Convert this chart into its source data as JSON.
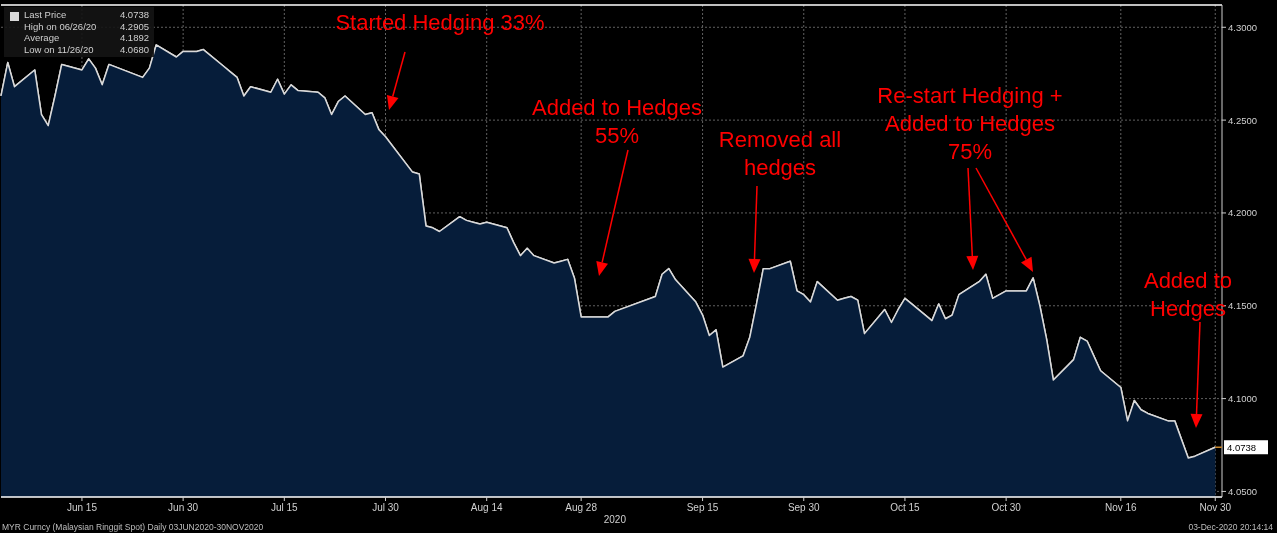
{
  "chart_data": {
    "type": "area",
    "xlabel": "2020",
    "x": [
      "2020-06-03",
      "2020-06-04",
      "2020-06-05",
      "2020-06-08",
      "2020-06-09",
      "2020-06-10",
      "2020-06-11",
      "2020-06-12",
      "2020-06-15",
      "2020-06-16",
      "2020-06-17",
      "2020-06-18",
      "2020-06-19",
      "2020-06-24",
      "2020-06-25",
      "2020-06-26",
      "2020-06-29",
      "2020-06-30",
      "2020-07-02",
      "2020-07-03",
      "2020-07-06",
      "2020-07-07",
      "2020-07-08",
      "2020-07-09",
      "2020-07-10",
      "2020-07-13",
      "2020-07-14",
      "2020-07-15",
      "2020-07-16",
      "2020-07-17",
      "2020-07-20",
      "2020-07-21",
      "2020-07-22",
      "2020-07-23",
      "2020-07-24",
      "2020-07-27",
      "2020-07-28",
      "2020-07-29",
      "2020-07-30",
      "2020-08-03",
      "2020-08-04",
      "2020-08-05",
      "2020-08-06",
      "2020-08-07",
      "2020-08-10",
      "2020-08-11",
      "2020-08-12",
      "2020-08-13",
      "2020-08-14",
      "2020-08-17",
      "2020-08-18",
      "2020-08-19",
      "2020-08-20",
      "2020-08-21",
      "2020-08-24",
      "2020-08-25",
      "2020-08-26",
      "2020-08-27",
      "2020-08-28",
      "2020-08-31",
      "2020-09-01",
      "2020-09-02",
      "2020-09-08",
      "2020-09-09",
      "2020-09-10",
      "2020-09-11",
      "2020-09-14",
      "2020-09-15",
      "2020-09-16",
      "2020-09-17",
      "2020-09-18",
      "2020-09-21",
      "2020-09-22",
      "2020-09-23",
      "2020-09-24",
      "2020-09-25",
      "2020-09-28",
      "2020-09-29",
      "2020-09-30",
      "2020-10-01",
      "2020-10-02",
      "2020-10-05",
      "2020-10-06",
      "2020-10-07",
      "2020-10-08",
      "2020-10-09",
      "2020-10-12",
      "2020-10-13",
      "2020-10-14",
      "2020-10-15",
      "2020-10-16",
      "2020-10-19",
      "2020-10-20",
      "2020-10-21",
      "2020-10-22",
      "2020-10-23",
      "2020-10-26",
      "2020-10-27",
      "2020-10-28",
      "2020-10-29",
      "2020-10-30",
      "2020-11-02",
      "2020-11-03",
      "2020-11-04",
      "2020-11-05",
      "2020-11-06",
      "2020-11-09",
      "2020-11-10",
      "2020-11-11",
      "2020-11-12",
      "2020-11-13",
      "2020-11-16",
      "2020-11-17",
      "2020-11-18",
      "2020-11-19",
      "2020-11-20",
      "2020-11-23",
      "2020-11-24",
      "2020-11-26",
      "2020-11-27",
      "2020-11-30"
    ],
    "series": [
      {
        "name": "Last Price",
        "color": "#d9d9d9",
        "values": [
          4.263,
          4.281,
          4.268,
          4.277,
          4.253,
          4.247,
          4.263,
          4.28,
          4.277,
          4.283,
          4.278,
          4.269,
          4.28,
          4.273,
          4.278,
          4.2905,
          4.284,
          4.287,
          4.287,
          4.288,
          4.279,
          4.276,
          4.273,
          4.263,
          4.268,
          4.265,
          4.272,
          4.264,
          4.269,
          4.266,
          4.265,
          4.262,
          4.253,
          4.26,
          4.263,
          4.253,
          4.254,
          4.245,
          4.241,
          4.222,
          4.221,
          4.193,
          4.192,
          4.19,
          4.198,
          4.196,
          4.195,
          4.194,
          4.195,
          4.192,
          4.184,
          4.177,
          4.181,
          4.177,
          4.173,
          4.174,
          4.175,
          4.165,
          4.144,
          4.144,
          4.144,
          4.147,
          4.155,
          4.167,
          4.17,
          4.164,
          4.152,
          4.145,
          4.134,
          4.137,
          4.117,
          4.123,
          4.133,
          4.151,
          4.17,
          4.17,
          4.174,
          4.158,
          4.156,
          4.152,
          4.163,
          4.153,
          4.154,
          4.155,
          4.153,
          4.135,
          4.148,
          4.141,
          4.148,
          4.154,
          4.151,
          4.142,
          4.151,
          4.143,
          4.145,
          4.156,
          4.163,
          4.167,
          4.154,
          4.156,
          4.158,
          4.158,
          4.165,
          4.15,
          4.132,
          4.11,
          4.121,
          4.133,
          4.131,
          4.123,
          4.115,
          4.106,
          4.088,
          4.099,
          4.094,
          4.092,
          4.088,
          4.088,
          4.068,
          4.069,
          4.0738
        ]
      }
    ],
    "xlim": [
      "2020-06-03",
      "2020-12-01"
    ],
    "xticks": [
      {
        "value": "2020-06-15",
        "label": "Jun 15"
      },
      {
        "value": "2020-06-30",
        "label": "Jun 30"
      },
      {
        "value": "2020-07-15",
        "label": "Jul 15"
      },
      {
        "value": "2020-07-30",
        "label": "Jul 30"
      },
      {
        "value": "2020-08-14",
        "label": "Aug 14"
      },
      {
        "value": "2020-08-28",
        "label": "Aug 28"
      },
      {
        "value": "2020-09-15",
        "label": "Sep 15"
      },
      {
        "value": "2020-09-30",
        "label": "Sep 30"
      },
      {
        "value": "2020-10-15",
        "label": "Oct 15"
      },
      {
        "value": "2020-10-30",
        "label": "Oct 30"
      },
      {
        "value": "2020-11-16",
        "label": "Nov 16"
      },
      {
        "value": "2020-11-30",
        "label": "Nov 30"
      }
    ],
    "ylim": [
      4.047,
      4.312
    ],
    "yticks": [
      {
        "value": 4.05,
        "label": "4.0500"
      },
      {
        "value": 4.1,
        "label": "4.1000"
      },
      {
        "value": 4.15,
        "label": "4.1500"
      },
      {
        "value": 4.2,
        "label": "4.2000"
      },
      {
        "value": 4.25,
        "label": "4.2500"
      },
      {
        "value": 4.3,
        "label": "4.3000"
      }
    ],
    "grid": true,
    "legend": "top left",
    "annotations": [
      {
        "text": "4.0738",
        "x": "2020-11-30",
        "y": 4.0738
      },
      "Started Hedging 33%",
      "Added to Hedges\n55%",
      "Removed all\nhedges",
      "Re-start Hedging +\nAdded to Hedges\n75%",
      "Added to\nHedges",
      "4.0738",
      "High on 06/26/20",
      "4.2905",
      "Average",
      "4.1892",
      "Low on 11/26/20",
      "4.0680",
      "MYR Curncy (Malaysian Ringgit Spot)  Daily 03JUN2020-30NOV2020",
      "03-Dec-2020 20:14:14"
    ]
  }
}
